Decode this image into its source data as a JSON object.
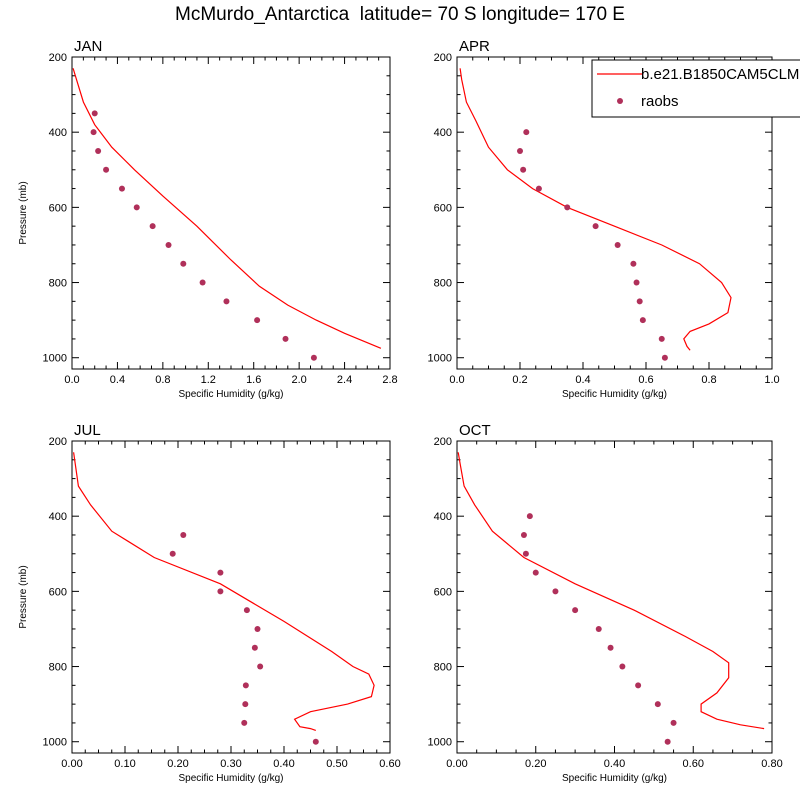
{
  "title": "McMurdo_Antarctica  latitude= 70 S longitude= 170 E",
  "colors": {
    "model": "#ff0000",
    "obs": "#b0305a",
    "axis": "#000000"
  },
  "chart_data": [
    {
      "type": "line",
      "title": "JAN",
      "xlabel": "Specific Humidity (g/kg)",
      "ylabel": "Pressure (mb)",
      "xlim": [
        0.0,
        2.8
      ],
      "ylim": [
        1030,
        200
      ],
      "y_inverted": true,
      "x_ticks": [
        "0.0",
        "0.4",
        "0.8",
        "1.2",
        "1.6",
        "2.0",
        "2.4",
        "2.8"
      ],
      "y_ticks": [
        "200",
        "400",
        "600",
        "800",
        "1000"
      ],
      "series": [
        {
          "name": "b.e21.B1850CAM5CLM",
          "kind": "line",
          "x": [
            0.01,
            0.04,
            0.1,
            0.2,
            0.35,
            0.55,
            0.8,
            1.1,
            1.4,
            1.65,
            1.9,
            2.15,
            2.4,
            2.6,
            2.72
          ],
          "y": [
            230,
            260,
            320,
            380,
            440,
            500,
            570,
            650,
            740,
            810,
            860,
            900,
            935,
            960,
            975
          ]
        },
        {
          "name": "raobs",
          "kind": "points",
          "x": [
            0.2,
            0.19,
            0.23,
            0.3,
            0.44,
            0.57,
            0.71,
            0.85,
            0.98,
            1.15,
            1.36,
            1.63,
            1.88,
            2.13
          ],
          "y": [
            350,
            400,
            450,
            500,
            550,
            600,
            650,
            700,
            750,
            800,
            850,
            900,
            950,
            1000
          ]
        }
      ]
    },
    {
      "type": "line",
      "title": "APR",
      "xlabel": "Specific Humidity (g/kg)",
      "ylabel": "",
      "xlim": [
        0.0,
        1.0
      ],
      "ylim": [
        1030,
        200
      ],
      "y_inverted": true,
      "x_ticks": [
        "0.0",
        "0.2",
        "0.4",
        "0.6",
        "0.8",
        "1.0"
      ],
      "y_ticks": [
        "200",
        "400",
        "600",
        "800",
        "1000"
      ],
      "series": [
        {
          "name": "b.e21.B1850CAM5CLM",
          "kind": "line",
          "x": [
            0.01,
            0.015,
            0.03,
            0.06,
            0.1,
            0.16,
            0.24,
            0.35,
            0.5,
            0.65,
            0.77,
            0.84,
            0.87,
            0.86,
            0.8,
            0.74,
            0.72,
            0.73,
            0.74
          ],
          "y": [
            230,
            260,
            320,
            370,
            440,
            500,
            550,
            600,
            650,
            700,
            750,
            800,
            840,
            880,
            910,
            930,
            950,
            970,
            980
          ]
        },
        {
          "name": "raobs",
          "kind": "points",
          "x": [
            0.22,
            0.2,
            0.21,
            0.26,
            0.35,
            0.44,
            0.51,
            0.56,
            0.57,
            0.58,
            0.59,
            0.65,
            0.66
          ],
          "y": [
            400,
            450,
            500,
            550,
            600,
            650,
            700,
            750,
            800,
            850,
            900,
            950,
            1000
          ]
        }
      ]
    },
    {
      "type": "line",
      "title": "JUL",
      "xlabel": "Specific Humidity (g/kg)",
      "ylabel": "Pressure (mb)",
      "xlim": [
        0.0,
        0.6
      ],
      "ylim": [
        1030,
        200
      ],
      "y_inverted": true,
      "x_ticks": [
        "0.00",
        "0.10",
        "0.20",
        "0.30",
        "0.40",
        "0.50",
        "0.60"
      ],
      "y_ticks": [
        "200",
        "400",
        "600",
        "800",
        "1000"
      ],
      "series": [
        {
          "name": "b.e21.B1850CAM5CLM",
          "kind": "line",
          "x": [
            0.003,
            0.006,
            0.012,
            0.035,
            0.075,
            0.155,
            0.28,
            0.4,
            0.49,
            0.53,
            0.56,
            0.57,
            0.565,
            0.52,
            0.45,
            0.42,
            0.43,
            0.45,
            0.46
          ],
          "y": [
            230,
            260,
            320,
            370,
            440,
            510,
            580,
            680,
            760,
            800,
            820,
            850,
            880,
            900,
            920,
            940,
            960,
            965,
            970
          ]
        },
        {
          "name": "raobs",
          "kind": "points",
          "x": [
            0.21,
            0.19,
            0.28,
            0.28,
            0.33,
            0.35,
            0.345,
            0.355,
            0.328,
            0.327,
            0.325,
            0.46
          ],
          "y": [
            450,
            500,
            550,
            600,
            650,
            700,
            750,
            800,
            850,
            900,
            950,
            1000
          ]
        }
      ]
    },
    {
      "type": "line",
      "title": "OCT",
      "xlabel": "Specific Humidity (g/kg)",
      "ylabel": "",
      "xlim": [
        0.0,
        0.8
      ],
      "ylim": [
        1030,
        200
      ],
      "y_inverted": true,
      "x_ticks": [
        "0.00",
        "0.20",
        "0.40",
        "0.60",
        "0.80"
      ],
      "y_ticks": [
        "200",
        "400",
        "600",
        "800",
        "1000"
      ],
      "series": [
        {
          "name": "b.e21.B1850CAM5CLM",
          "kind": "line",
          "x": [
            0.003,
            0.008,
            0.018,
            0.045,
            0.09,
            0.17,
            0.3,
            0.45,
            0.58,
            0.65,
            0.69,
            0.69,
            0.66,
            0.62,
            0.62,
            0.66,
            0.72,
            0.78
          ],
          "y": [
            230,
            260,
            320,
            370,
            440,
            510,
            580,
            650,
            720,
            760,
            790,
            830,
            870,
            900,
            920,
            940,
            955,
            965
          ]
        },
        {
          "name": "raobs",
          "kind": "points",
          "x": [
            0.185,
            0.17,
            0.175,
            0.2,
            0.25,
            0.3,
            0.36,
            0.39,
            0.42,
            0.46,
            0.51,
            0.55,
            0.535
          ],
          "y": [
            400,
            450,
            500,
            550,
            600,
            650,
            700,
            750,
            800,
            850,
            900,
            950,
            1000
          ]
        }
      ]
    }
  ],
  "legend": {
    "placement": "top-right",
    "items": [
      {
        "label": "b.e21.B1850CAM5CLM",
        "kind": "line"
      },
      {
        "label": "raobs",
        "kind": "points"
      }
    ]
  }
}
